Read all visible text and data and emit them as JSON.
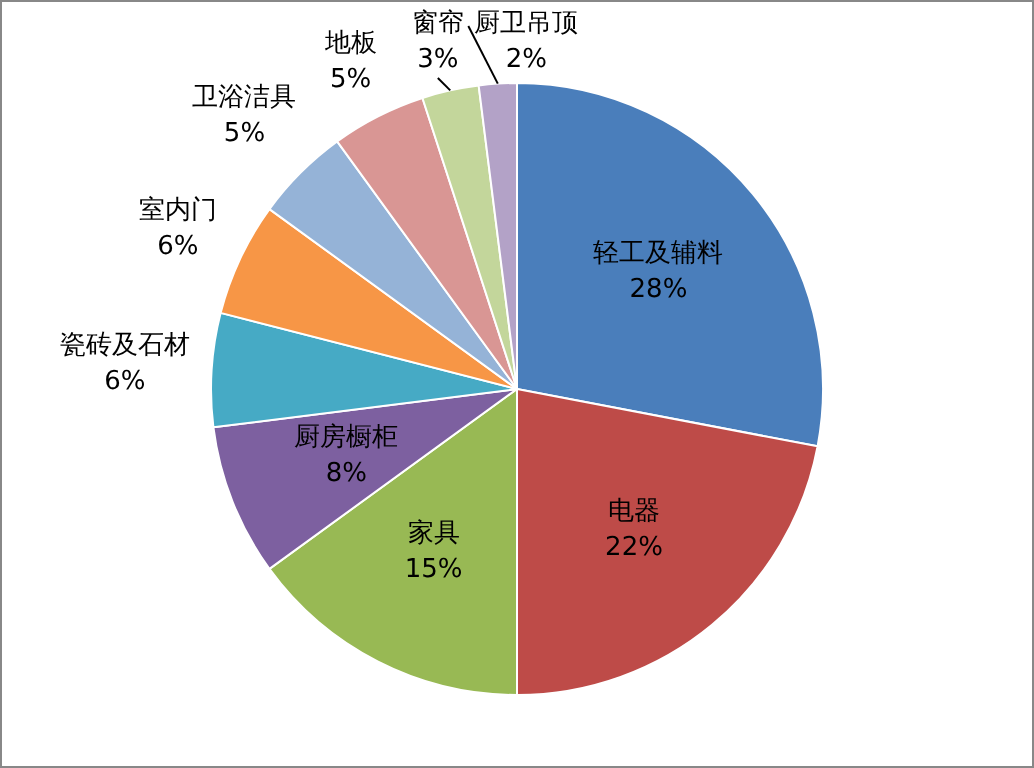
{
  "chart_data": {
    "type": "pie",
    "categories": [
      "轻工及辅料",
      "电器",
      "家具",
      "厨房橱柜",
      "瓷砖及石材",
      "室内门",
      "卫浴洁具",
      "地板",
      "窗帘",
      "厨卫吊顶"
    ],
    "values": [
      28,
      22,
      15,
      8,
      6,
      6,
      5,
      5,
      3,
      2
    ],
    "colors": [
      "#4a7ebb",
      "#be4b48",
      "#98b954",
      "#7d60a0",
      "#46aac5",
      "#f79646",
      "#95b3d7",
      "#d99694",
      "#c3d69b",
      "#b3a2c7"
    ],
    "value_labels": [
      "28%",
      "22%",
      "15%",
      "8%",
      "6%",
      "6%",
      "5%",
      "5%",
      "3%",
      "2%"
    ],
    "legend": false
  }
}
